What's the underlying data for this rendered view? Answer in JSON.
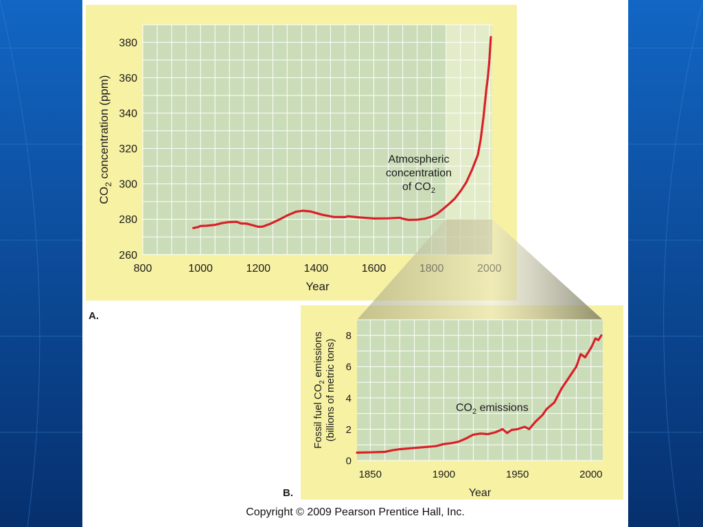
{
  "colors": {
    "slide_background": "#0a3d86",
    "panel_background": "#f7f1a4",
    "plot_background": "#cbdcb9",
    "highlight_background": "#e2ecc8",
    "grid": "#ffffff",
    "line": "#d92027"
  },
  "panel_labels": {
    "a": "A.",
    "b": "B."
  },
  "copyright": "Copyright © 2009 Pearson Prentice Hall, Inc.",
  "chart_data": [
    {
      "type": "line",
      "panel": "A.",
      "title": "",
      "xlabel": "Year",
      "ylabel_parts": [
        "CO",
        "2",
        " concentration (ppm)"
      ],
      "xlim": [
        800,
        2010
      ],
      "ylim": [
        260,
        390
      ],
      "xticks": [
        800,
        1000,
        1200,
        1400,
        1600,
        1800,
        2000
      ],
      "yticks": [
        260,
        280,
        300,
        320,
        340,
        360,
        380
      ],
      "grid": true,
      "highlight_range": [
        1850,
        2010
      ],
      "annotation_lines": [
        "Atmospheric",
        "concentration"
      ],
      "annotation_last": {
        "prefix": "of CO",
        "sub": "2"
      },
      "series": [
        {
          "x": [
            975,
            990,
            1000,
            1020,
            1050,
            1075,
            1100,
            1125,
            1140,
            1160,
            1180,
            1200,
            1215,
            1240,
            1275,
            1300,
            1330,
            1355,
            1380,
            1420,
            1460,
            1500,
            1510,
            1550,
            1600,
            1650,
            1690,
            1700,
            1720,
            1750,
            1780,
            1800,
            1820,
            1840,
            1860,
            1880,
            1900,
            1920,
            1940,
            1950,
            1960,
            1970,
            1980,
            1990,
            1995,
            2000,
            2005
          ],
          "y": [
            275,
            275.5,
            276.2,
            276.3,
            276.8,
            277.8,
            278.4,
            278.5,
            277.6,
            277.5,
            276.6,
            275.7,
            275.8,
            277.3,
            280,
            282.1,
            284.2,
            284.8,
            284.4,
            282.6,
            281.3,
            281.2,
            281.7,
            281,
            280.4,
            280.5,
            280.8,
            280.3,
            279.6,
            279.7,
            280.4,
            281.5,
            283.2,
            285.8,
            288.6,
            291.6,
            295.8,
            300.8,
            308,
            312.2,
            316.4,
            325.2,
            338.2,
            354,
            360.5,
            369.5,
            383
          ]
        }
      ]
    },
    {
      "type": "line",
      "panel": "B.",
      "title": "",
      "xlabel": "Year",
      "ylabel_lines": [
        [
          "Fossil fuel CO",
          "2",
          " emissions"
        ],
        [
          "(billions of metric tons)",
          "",
          ""
        ]
      ],
      "xlim": [
        1841,
        2008
      ],
      "ylim": [
        0,
        9
      ],
      "xticks": [
        1850,
        1900,
        1950,
        2000
      ],
      "yticks": [
        0,
        2,
        4,
        6,
        8
      ],
      "grid": true,
      "annotation": {
        "prefix": "CO",
        "sub": "2",
        "suffix": " emissions"
      },
      "series": [
        {
          "x": [
            1841,
            1850,
            1860,
            1865,
            1870,
            1880,
            1890,
            1895,
            1900,
            1905,
            1910,
            1915,
            1920,
            1925,
            1930,
            1935,
            1940,
            1943,
            1946,
            1950,
            1955,
            1958,
            1962,
            1967,
            1970,
            1975,
            1980,
            1985,
            1990,
            1993,
            1996,
            2000,
            2003,
            2005,
            2007
          ],
          "y": [
            0.5,
            0.52,
            0.55,
            0.65,
            0.72,
            0.8,
            0.88,
            0.92,
            1.05,
            1.1,
            1.2,
            1.4,
            1.65,
            1.72,
            1.68,
            1.8,
            2.0,
            1.75,
            1.95,
            2.0,
            2.15,
            2.0,
            2.45,
            2.9,
            3.3,
            3.7,
            4.6,
            5.3,
            6.0,
            6.8,
            6.6,
            7.2,
            7.8,
            7.7,
            8.0
          ]
        }
      ]
    }
  ]
}
